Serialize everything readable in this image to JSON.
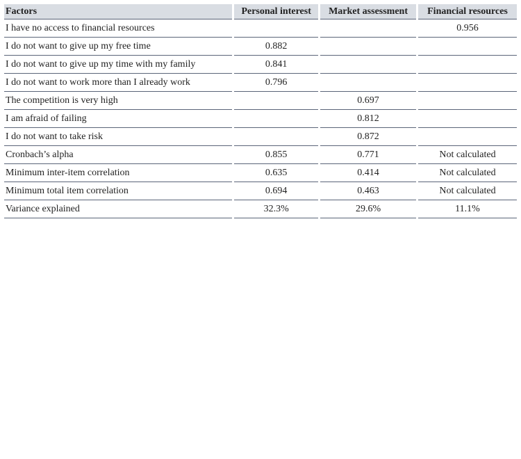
{
  "table": {
    "header": [
      "Factors",
      "Personal interest",
      "Market assessment",
      "Financial resources"
    ],
    "rows": [
      [
        "I have no access to financial resources",
        null,
        null,
        "0.956"
      ],
      [
        "I do not want to give up my free time",
        "0.882",
        null,
        null
      ],
      [
        "I do not want to give up my time with my family",
        "0.841",
        null,
        null
      ],
      [
        "I do not want to work more than I already work",
        "0.796",
        null,
        null
      ],
      [
        "The competition is very high",
        null,
        "0.697",
        null
      ],
      [
        "I am afraid of failing",
        null,
        "0.812",
        null
      ],
      [
        "I do not want to take risk",
        null,
        "0.872",
        null
      ],
      [
        "Cronbach’s alpha",
        "0.855",
        "0.771",
        "Not calculated"
      ],
      [
        "Minimum inter-item correlation",
        "0.635",
        "0.414",
        "Not calculated"
      ],
      [
        "Minimum total item correlation",
        "0.694",
        "0.463",
        "Not calculated"
      ],
      [
        "Variance explained",
        "32.3%",
        "29.6%",
        "11.1%"
      ]
    ]
  }
}
